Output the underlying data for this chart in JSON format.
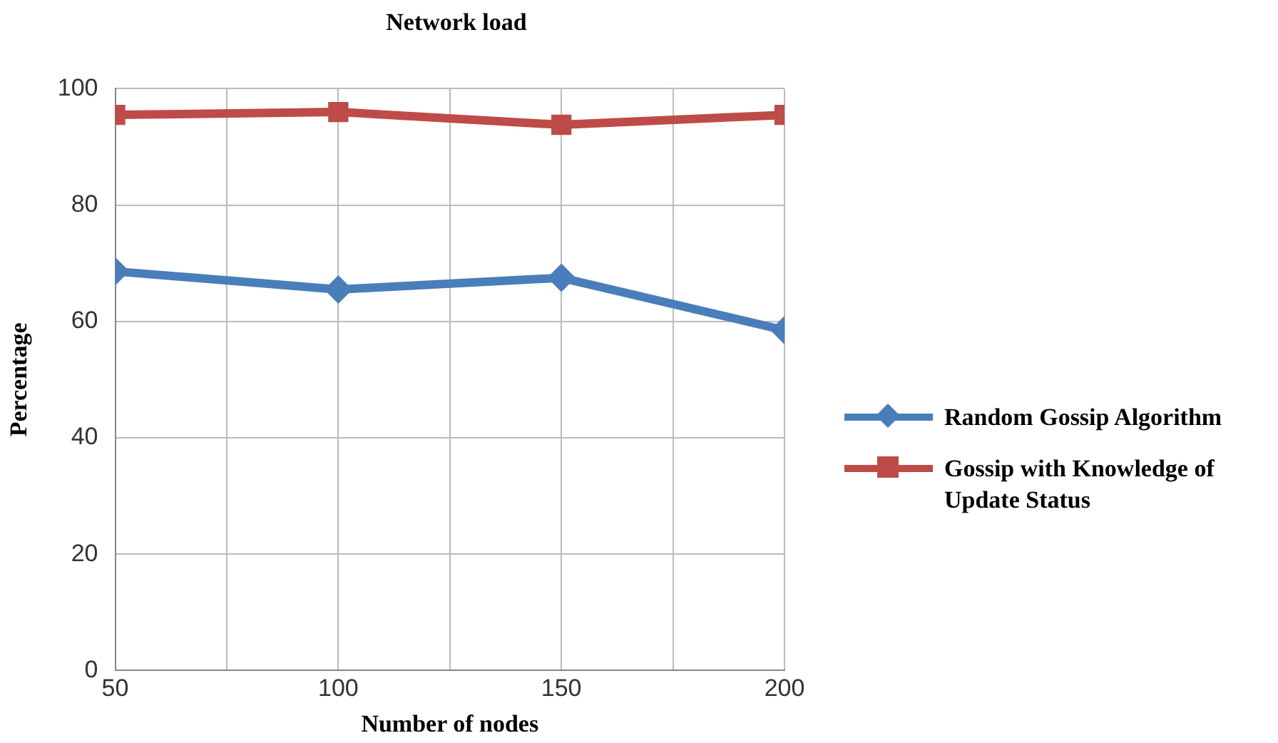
{
  "chart_data": {
    "type": "line",
    "title": "Network load",
    "xlabel": "Number of nodes",
    "ylabel": "Percentage",
    "x": [
      50,
      100,
      150,
      200
    ],
    "series": [
      {
        "name": "Random Gossip Algorithm",
        "color": "#4a7ebb",
        "values": [
          68.6,
          65.5,
          67.5,
          58.5
        ],
        "marker": "diamond"
      },
      {
        "name": "Gossip with Knowledge of Update Status",
        "color": "#be4b48",
        "values": [
          95.5,
          96,
          93.8,
          95.5
        ],
        "marker": "square"
      }
    ],
    "xlim": [
      50,
      200
    ],
    "xticks": [
      50,
      {
        "value": 75,
        "label": null
      },
      100,
      {
        "value": 125,
        "label": null
      },
      150,
      {
        "value": 175,
        "label": null
      },
      200
    ],
    "ylim": [
      0,
      100
    ],
    "yticks": [
      0,
      20,
      40,
      60,
      80,
      100
    ],
    "grid": true,
    "legend": "right",
    "line_style": "solid"
  }
}
